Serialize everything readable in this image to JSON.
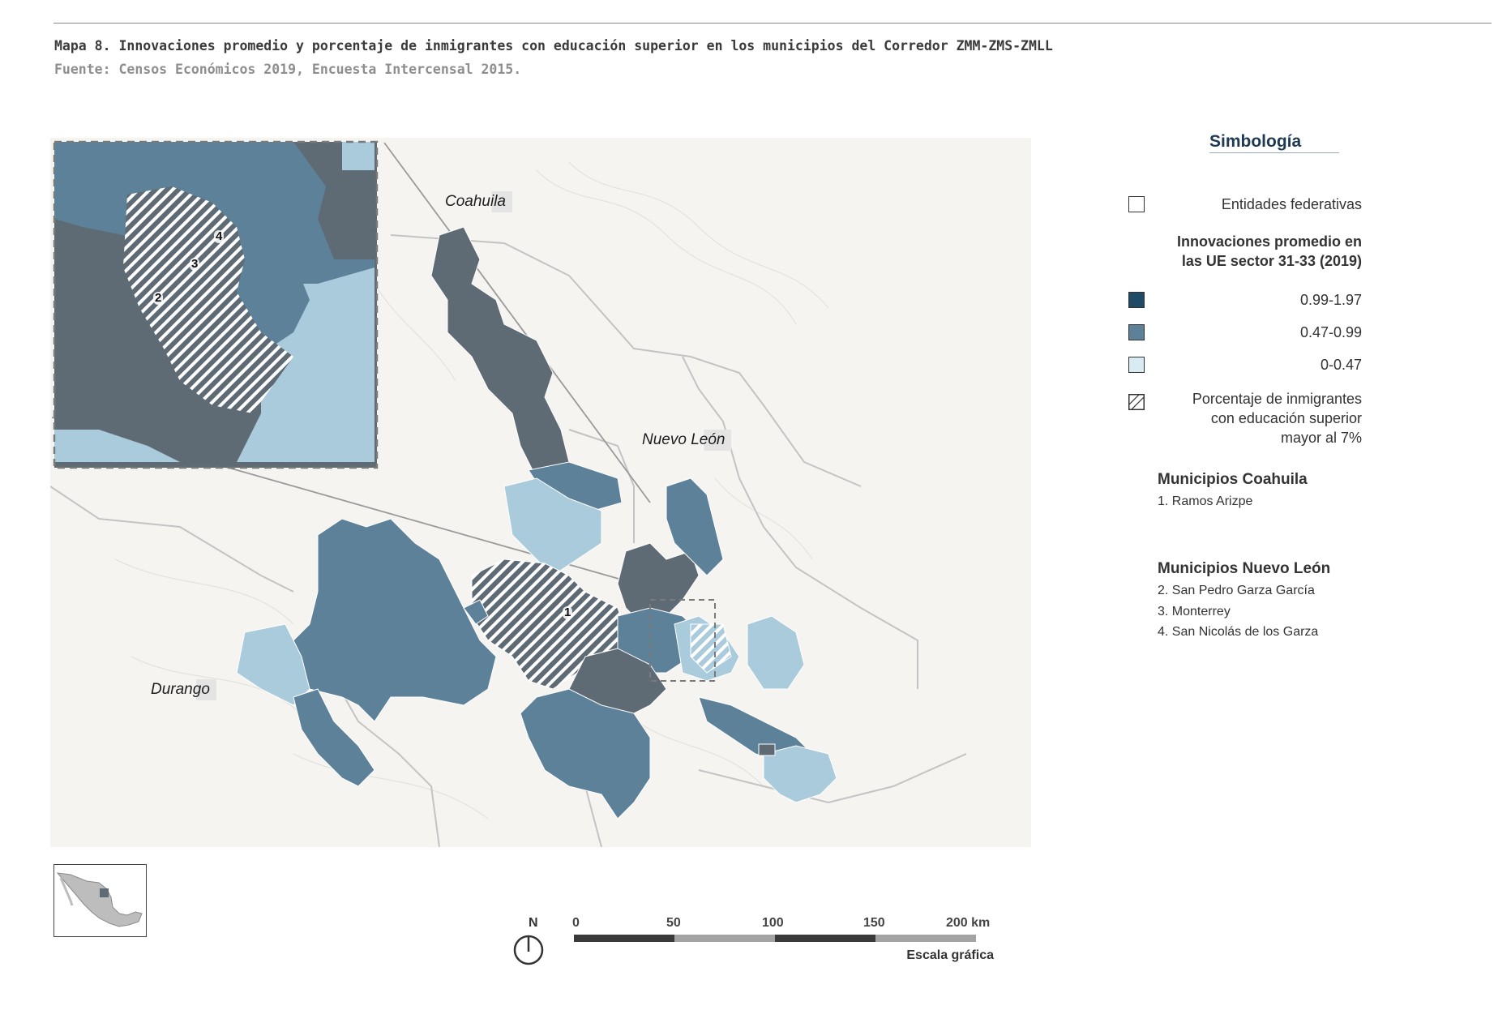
{
  "caption": {
    "title": "Mapa 8. Innovaciones promedio y porcentaje de inmigrantes con educación superior en los municipios del Corredor ZMM-ZMS-ZMLL",
    "source": "Fuente: Censos Económicos 2019, Encuesta Intercensal 2015."
  },
  "map": {
    "states": {
      "coahuila": "Coahuila",
      "nuevo_leon": "Nuevo León",
      "durango": "Durango"
    },
    "municipality_numbers": {
      "n1": "1",
      "n2": "2",
      "n3": "3",
      "n4": "4"
    },
    "colors": {
      "background": "#f5f4f1",
      "class_high": "#1f4b66",
      "class_mid": "#5d8199",
      "class_low": "#a9cbdb",
      "dark_gray": "#5f6b74",
      "outline": "#c9c9c9"
    }
  },
  "scale_bar": {
    "north": "N",
    "ticks": [
      "0",
      "50",
      "100",
      "150",
      "200 km"
    ],
    "caption": "Escala gráfica"
  },
  "legend": {
    "title": "Simbología",
    "entidades": "Entidades federativas",
    "innov_header": "Innovaciones promedio en las UE  sector 31-33 (2019)",
    "classes": [
      {
        "label": "0.99-1.97",
        "color": "#1f4b66"
      },
      {
        "label": "0.47-0.99",
        "color": "#5d8199"
      },
      {
        "label": "0-0.47",
        "color": "#d8eaf2"
      }
    ],
    "hatch_label": "Porcentaje de inmigrantes con educación superior mayor al 7%",
    "coahuila_header": "Municipios Coahuila",
    "coahuila_items": [
      "1. Ramos Arizpe"
    ],
    "nl_header": "Municipios Nuevo León",
    "nl_items": [
      "2. San Pedro Garza García",
      "3. Monterrey",
      "4. San Nicolás de los Garza"
    ]
  }
}
